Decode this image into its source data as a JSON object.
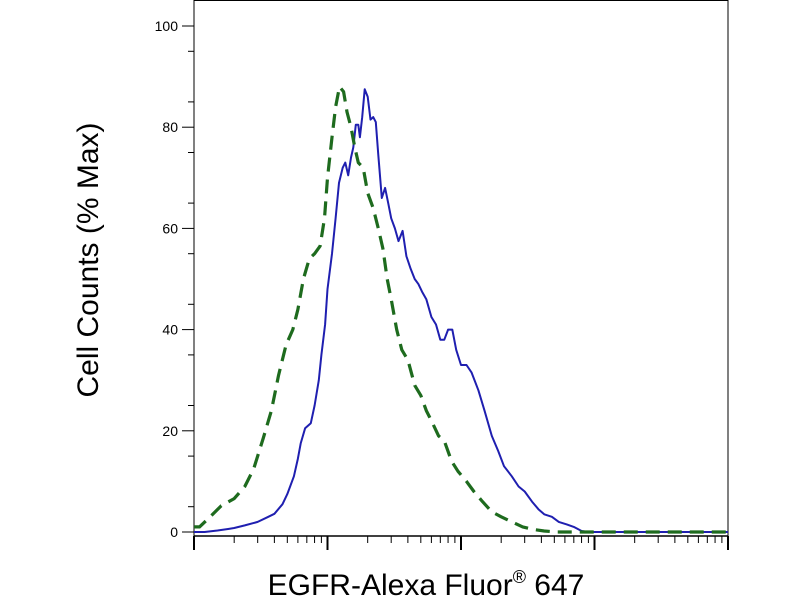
{
  "chart_data": {
    "type": "line",
    "title": "",
    "xlabel": "EGFR-Alexa Fluor",
    "xlabel_superscript": "®",
    "xlabel_suffix": " 647",
    "ylabel": "Cell Counts (% Max)",
    "x_scale": "log",
    "xlim": [
      1,
      10000
    ],
    "ylim": [
      0,
      100
    ],
    "yticks": [
      0,
      20,
      40,
      60,
      80,
      100
    ],
    "ytick_labels": [
      "0",
      "20",
      "40",
      "60",
      "80",
      "100"
    ],
    "xtick_labels": [],
    "grid": false,
    "legend": "none",
    "series": [
      {
        "style": "solid",
        "color": "#1f1fb0",
        "x": [
          1.0,
          1.2,
          1.5,
          1.8,
          2.0,
          2.4,
          3.0,
          3.6,
          4.0,
          4.6,
          5.0,
          5.6,
          6.0,
          6.3,
          6.8,
          7.5,
          8.0,
          8.6,
          9.0,
          9.6,
          10.0,
          10.8,
          11.5,
          12.2,
          13.0,
          13.6,
          14.3,
          15.0,
          15.6,
          16.3,
          17.0,
          17.5,
          18.2,
          19.0,
          20.0,
          21.0,
          22.0,
          23.0,
          24.0,
          25.5,
          27.0,
          28.5,
          30.0,
          32.0,
          34.0,
          36.5,
          39.0,
          42.0,
          45.0,
          48.0,
          51.0,
          55.0,
          60.0,
          65.0,
          70.0,
          75.0,
          80.0,
          86.0,
          92.0,
          100.0,
          110.0,
          120.0,
          135.0,
          150.0,
          170.0,
          190.0,
          210.0,
          240.0,
          270.0,
          300.0,
          340.0,
          380.0,
          420.0,
          480.0,
          540.0,
          620.0,
          700.0,
          800.0,
          900.0,
          1000.0,
          1150.0,
          1300.0,
          1500.0,
          1700.0,
          2000.0,
          2400.0,
          2800.0,
          3300.0,
          4000.0,
          5000.0,
          6200.0,
          7500.0,
          8600.0,
          10000.0
        ],
        "y": [
          0,
          0,
          0.3,
          0.6,
          0.8,
          1.3,
          2.0,
          3.0,
          3.6,
          5.5,
          7.5,
          11.0,
          14.5,
          17.5,
          20.5,
          21.5,
          25.0,
          30.0,
          35.0,
          41.0,
          48.0,
          55.0,
          62.0,
          69.0,
          72.0,
          73.0,
          70.5,
          74.0,
          76.0,
          80.5,
          80.5,
          78.0,
          82.0,
          87.5,
          86.0,
          81.5,
          82.0,
          81.0,
          74.5,
          66.0,
          68.0,
          65.0,
          62.0,
          60.0,
          57.5,
          59.5,
          54.5,
          52.0,
          50.0,
          49.0,
          47.5,
          46.0,
          42.5,
          41.0,
          38.0,
          38.0,
          40.0,
          40.0,
          36.0,
          33.0,
          33.0,
          31.5,
          28.0,
          24.0,
          19.0,
          16.0,
          13.0,
          11.0,
          9.0,
          8.0,
          6.0,
          4.5,
          3.5,
          3.0,
          2.0,
          1.5,
          1.0,
          0.2,
          0,
          0,
          0,
          0,
          0,
          0,
          0,
          0,
          0,
          0,
          0,
          0,
          0,
          0,
          0,
          0
        ]
      },
      {
        "style": "dashed",
        "color": "#1e6b1e",
        "x": [
          1.0,
          1.1,
          1.3,
          1.6,
          2.0,
          2.4,
          2.8,
          3.3,
          3.8,
          4.3,
          4.9,
          5.5,
          6.0,
          6.6,
          7.3,
          8.0,
          8.8,
          9.5,
          10.0,
          10.8,
          11.5,
          12.3,
          13.2,
          14.0,
          15.0,
          16.0,
          17.0,
          18.5,
          20.0,
          22.0,
          24.0,
          26.0,
          28.0,
          30.0,
          33.0,
          36.0,
          40.0,
          45.0,
          50.0,
          55.0,
          60.0,
          68.0,
          75.0,
          85.0,
          95.0,
          110.0,
          125.0,
          145.0,
          170.0,
          200.0,
          240.0,
          290.0,
          350.0,
          420.0,
          520.0,
          650.0,
          800.0,
          1000.0,
          1300.0,
          1700.0,
          2200.0,
          3000.0,
          4000.0,
          5500.0,
          7500.0,
          10000.0
        ],
        "y": [
          1.0,
          1.0,
          2.8,
          5.2,
          6.6,
          9.0,
          12.5,
          18.5,
          24.0,
          31.0,
          37.0,
          40.0,
          44.0,
          50.0,
          54.0,
          55.0,
          56.5,
          62.0,
          70.0,
          78.0,
          84.0,
          88.0,
          87.0,
          83.0,
          80.0,
          76.0,
          73.0,
          72.0,
          67.0,
          64.0,
          60.0,
          56.0,
          50.0,
          46.0,
          40.0,
          36.0,
          34.0,
          29.0,
          27.0,
          24.0,
          22.0,
          19.0,
          18.0,
          14.0,
          12.0,
          10.0,
          8.0,
          6.0,
          4.0,
          3.0,
          2.0,
          1.0,
          0.5,
          0.2,
          0,
          0,
          0,
          0,
          0,
          0,
          0,
          0,
          0,
          0,
          0,
          0
        ]
      }
    ]
  }
}
